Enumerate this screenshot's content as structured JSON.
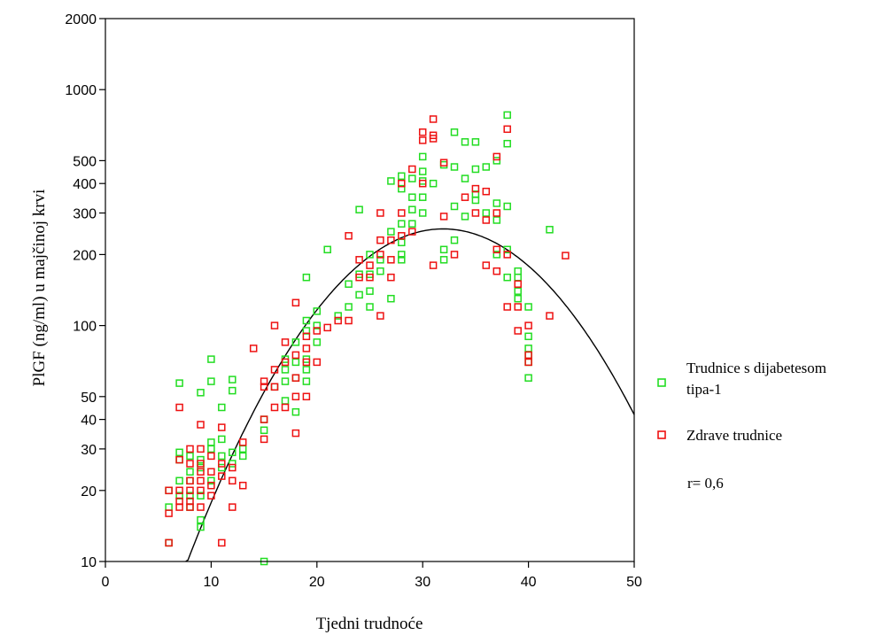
{
  "chart_data": {
    "type": "scatter",
    "title": "",
    "xlabel": "Tjedni trudnoće",
    "ylabel": "PlGF (ng/ml) u majčinoj krvi",
    "xlim": [
      0,
      50
    ],
    "ylim": [
      10,
      2000
    ],
    "yscale": "log",
    "x_ticks": [
      0,
      10,
      20,
      30,
      40,
      50
    ],
    "y_ticks": [
      10,
      20,
      30,
      40,
      50,
      100,
      200,
      300,
      400,
      500,
      1000,
      2000
    ],
    "grid": false,
    "legend_position": "right",
    "annotation": "r= 0,6",
    "colors": {
      "series1": "#22dd22",
      "series2": "#ee1111",
      "fit": "#000000"
    },
    "series": [
      {
        "name": "Trudnice s dijabetesom tipa-1",
        "marker": "square",
        "points": [
          [
            6,
            12
          ],
          [
            6,
            17
          ],
          [
            6,
            20
          ],
          [
            7,
            19
          ],
          [
            7,
            22
          ],
          [
            7,
            27
          ],
          [
            7,
            29
          ],
          [
            7,
            57
          ],
          [
            8,
            17
          ],
          [
            8,
            19
          ],
          [
            8,
            22
          ],
          [
            8,
            24
          ],
          [
            8,
            28
          ],
          [
            9,
            14
          ],
          [
            9,
            15
          ],
          [
            9,
            19
          ],
          [
            9,
            25
          ],
          [
            9,
            27
          ],
          [
            9,
            52
          ],
          [
            10,
            22
          ],
          [
            10,
            30
          ],
          [
            10,
            32
          ],
          [
            10,
            58
          ],
          [
            10,
            72
          ],
          [
            11,
            25
          ],
          [
            11,
            28
          ],
          [
            11,
            33
          ],
          [
            11,
            45
          ],
          [
            12,
            26
          ],
          [
            12,
            29
          ],
          [
            12,
            53
          ],
          [
            12,
            59
          ],
          [
            13,
            28
          ],
          [
            13,
            30
          ],
          [
            15,
            10
          ],
          [
            15,
            36
          ],
          [
            15,
            40
          ],
          [
            16,
            55
          ],
          [
            17,
            48
          ],
          [
            17,
            58
          ],
          [
            17,
            65
          ],
          [
            17,
            72
          ],
          [
            18,
            43
          ],
          [
            18,
            60
          ],
          [
            18,
            70
          ],
          [
            18,
            85
          ],
          [
            19,
            58
          ],
          [
            19,
            65
          ],
          [
            19,
            72
          ],
          [
            19,
            95
          ],
          [
            19,
            105
          ],
          [
            19,
            160
          ],
          [
            20,
            85
          ],
          [
            20,
            100
          ],
          [
            20,
            115
          ],
          [
            21,
            210
          ],
          [
            22,
            110
          ],
          [
            23,
            120
          ],
          [
            23,
            150
          ],
          [
            24,
            135
          ],
          [
            24,
            165
          ],
          [
            24,
            310
          ],
          [
            25,
            120
          ],
          [
            25,
            140
          ],
          [
            25,
            165
          ],
          [
            25,
            200
          ],
          [
            26,
            170
          ],
          [
            26,
            190
          ],
          [
            27,
            130
          ],
          [
            27,
            250
          ],
          [
            27,
            410
          ],
          [
            28,
            190
          ],
          [
            28,
            200
          ],
          [
            28,
            225
          ],
          [
            28,
            270
          ],
          [
            28,
            380
          ],
          [
            28,
            430
          ],
          [
            29,
            270
          ],
          [
            29,
            310
          ],
          [
            29,
            350
          ],
          [
            29,
            420
          ],
          [
            30,
            300
          ],
          [
            30,
            350
          ],
          [
            30,
            410
          ],
          [
            30,
            450
          ],
          [
            30,
            520
          ],
          [
            31,
            400
          ],
          [
            32,
            190
          ],
          [
            32,
            210
          ],
          [
            32,
            480
          ],
          [
            33,
            230
          ],
          [
            33,
            320
          ],
          [
            33,
            470
          ],
          [
            33,
            660
          ],
          [
            34,
            290
          ],
          [
            34,
            420
          ],
          [
            34,
            600
          ],
          [
            35,
            340
          ],
          [
            35,
            360
          ],
          [
            35,
            460
          ],
          [
            35,
            600
          ],
          [
            36,
            300
          ],
          [
            36,
            470
          ],
          [
            37,
            200
          ],
          [
            37,
            280
          ],
          [
            37,
            330
          ],
          [
            37,
            500
          ],
          [
            38,
            210
          ],
          [
            38,
            320
          ],
          [
            38,
            590
          ],
          [
            38,
            780
          ],
          [
            38,
            160
          ],
          [
            39,
            130
          ],
          [
            39,
            140
          ],
          [
            39,
            160
          ],
          [
            39,
            170
          ],
          [
            40,
            60
          ],
          [
            40,
            70
          ],
          [
            40,
            75
          ],
          [
            40,
            80
          ],
          [
            40,
            90
          ],
          [
            40,
            120
          ],
          [
            42,
            255
          ]
        ]
      },
      {
        "name": "Zdrave trudnice",
        "marker": "square",
        "points": [
          [
            6,
            12
          ],
          [
            6,
            16
          ],
          [
            6,
            20
          ],
          [
            7,
            17
          ],
          [
            7,
            18
          ],
          [
            7,
            20
          ],
          [
            7,
            27
          ],
          [
            7,
            45
          ],
          [
            8,
            17
          ],
          [
            8,
            18
          ],
          [
            8,
            20
          ],
          [
            8,
            22
          ],
          [
            8,
            26
          ],
          [
            8,
            30
          ],
          [
            9,
            17
          ],
          [
            9,
            20
          ],
          [
            9,
            22
          ],
          [
            9,
            24
          ],
          [
            9,
            26
          ],
          [
            9,
            30
          ],
          [
            9,
            38
          ],
          [
            10,
            19
          ],
          [
            10,
            21
          ],
          [
            10,
            24
          ],
          [
            10,
            28
          ],
          [
            11,
            12
          ],
          [
            11,
            23
          ],
          [
            11,
            26
          ],
          [
            11,
            37
          ],
          [
            12,
            17
          ],
          [
            12,
            22
          ],
          [
            12,
            25
          ],
          [
            13,
            21
          ],
          [
            13,
            32
          ],
          [
            14,
            80
          ],
          [
            15,
            33
          ],
          [
            15,
            40
          ],
          [
            15,
            55
          ],
          [
            15,
            58
          ],
          [
            16,
            45
          ],
          [
            16,
            55
          ],
          [
            16,
            65
          ],
          [
            16,
            100
          ],
          [
            17,
            45
          ],
          [
            17,
            70
          ],
          [
            17,
            85
          ],
          [
            18,
            35
          ],
          [
            18,
            50
          ],
          [
            18,
            60
          ],
          [
            18,
            75
          ],
          [
            18,
            125
          ],
          [
            19,
            50
          ],
          [
            19,
            70
          ],
          [
            19,
            80
          ],
          [
            19,
            90
          ],
          [
            20,
            70
          ],
          [
            20,
            95
          ],
          [
            21,
            98
          ],
          [
            22,
            105
          ],
          [
            23,
            105
          ],
          [
            23,
            240
          ],
          [
            24,
            160
          ],
          [
            24,
            190
          ],
          [
            25,
            160
          ],
          [
            25,
            180
          ],
          [
            26,
            110
          ],
          [
            26,
            200
          ],
          [
            26,
            230
          ],
          [
            26,
            300
          ],
          [
            27,
            160
          ],
          [
            27,
            190
          ],
          [
            27,
            230
          ],
          [
            28,
            240
          ],
          [
            28,
            300
          ],
          [
            28,
            400
          ],
          [
            29,
            250
          ],
          [
            29,
            460
          ],
          [
            30,
            400
          ],
          [
            30,
            610
          ],
          [
            30,
            660
          ],
          [
            31,
            180
          ],
          [
            31,
            620
          ],
          [
            31,
            640
          ],
          [
            31,
            750
          ],
          [
            32,
            290
          ],
          [
            32,
            490
          ],
          [
            33,
            200
          ],
          [
            34,
            350
          ],
          [
            35,
            300
          ],
          [
            35,
            380
          ],
          [
            36,
            180
          ],
          [
            36,
            280
          ],
          [
            36,
            370
          ],
          [
            37,
            170
          ],
          [
            37,
            210
          ],
          [
            37,
            300
          ],
          [
            37,
            520
          ],
          [
            38,
            120
          ],
          [
            38,
            200
          ],
          [
            38,
            680
          ],
          [
            39,
            95
          ],
          [
            39,
            120
          ],
          [
            39,
            150
          ],
          [
            40,
            70
          ],
          [
            40,
            75
          ],
          [
            40,
            100
          ],
          [
            42,
            110
          ],
          [
            43.5,
            198
          ]
        ]
      }
    ],
    "fit_line": {
      "type": "quadratic in log10(y)",
      "x": [
        7.6,
        10,
        15,
        20,
        25,
        30,
        32,
        35,
        40,
        45,
        50
      ],
      "y": [
        10,
        18,
        48,
        110,
        200,
        270,
        280,
        250,
        165,
        90,
        45
      ]
    }
  }
}
